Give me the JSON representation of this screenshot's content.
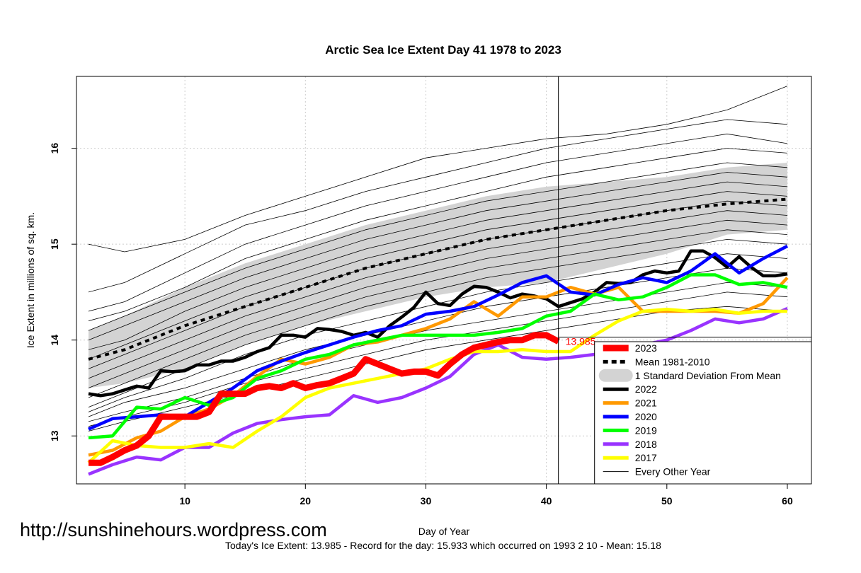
{
  "watermark": "http://sunshinehours.wordpress.com",
  "footer": "Today's Ice Extent: 13.985  - Record for the day: 15.933 which occurred on 1993 2 10  - Mean: 15.18",
  "chart_data": {
    "type": "line",
    "title": "Arctic Sea Ice Extent Day 41 1978 to 2023",
    "xlabel": "Day of Year",
    "ylabel": "Ice Extent in millions of sq. km.",
    "xlim": [
      1,
      62
    ],
    "ylim": [
      12.5,
      16.75
    ],
    "xticks": [
      10,
      20,
      30,
      40,
      50,
      60
    ],
    "yticks": [
      13,
      14,
      15,
      16
    ],
    "grid": true,
    "legend_position": "bottom-right",
    "reference_lines": {
      "vertical_x": 41,
      "horizontal_y": 14.03,
      "legend_box_left_x": 44
    },
    "annotation": {
      "x": 41,
      "y": 13.985,
      "text": "13.985",
      "color": "#ff0000"
    },
    "std_band": {
      "name": "1 Standard Deviation From Mean",
      "color": "#d3d3d3",
      "x": [
        2,
        5,
        10,
        15,
        20,
        25,
        30,
        35,
        40,
        45,
        50,
        55,
        60
      ],
      "upper": [
        14.1,
        14.25,
        14.55,
        14.8,
        15.0,
        15.2,
        15.35,
        15.5,
        15.6,
        15.65,
        15.7,
        15.8,
        15.85
      ],
      "lower": [
        13.5,
        13.55,
        13.7,
        13.95,
        14.15,
        14.3,
        14.45,
        14.55,
        14.6,
        14.75,
        14.9,
        15.1,
        15.15
      ]
    },
    "background_years": {
      "name": "Every Other Year",
      "color": "#000000",
      "x": [
        2,
        5,
        10,
        15,
        20,
        25,
        30,
        35,
        40,
        45,
        50,
        55,
        60
      ],
      "lines": [
        [
          15.0,
          14.92,
          15.05,
          15.3,
          15.5,
          15.7,
          15.9,
          16.0,
          16.1,
          16.15,
          16.25,
          16.4,
          16.65
        ],
        [
          14.5,
          14.6,
          14.9,
          15.2,
          15.35,
          15.55,
          15.7,
          15.85,
          16.0,
          16.1,
          16.2,
          16.3,
          16.25
        ],
        [
          14.3,
          14.4,
          14.7,
          15.0,
          15.2,
          15.4,
          15.55,
          15.7,
          15.85,
          15.95,
          16.05,
          16.15,
          16.05
        ],
        [
          14.2,
          14.3,
          14.55,
          14.85,
          15.05,
          15.25,
          15.4,
          15.55,
          15.7,
          15.8,
          15.9,
          16.0,
          15.95
        ],
        [
          14.1,
          14.25,
          14.5,
          14.75,
          14.95,
          15.15,
          15.3,
          15.45,
          15.55,
          15.65,
          15.75,
          15.85,
          15.8
        ],
        [
          14.0,
          14.15,
          14.4,
          14.65,
          14.85,
          15.05,
          15.2,
          15.35,
          15.45,
          15.55,
          15.65,
          15.75,
          15.7
        ],
        [
          13.9,
          14.0,
          14.3,
          14.55,
          14.75,
          14.95,
          15.1,
          15.25,
          15.35,
          15.45,
          15.55,
          15.65,
          15.6
        ],
        [
          13.8,
          13.95,
          14.2,
          14.45,
          14.65,
          14.85,
          15.0,
          15.15,
          15.25,
          15.35,
          15.45,
          15.55,
          15.5
        ],
        [
          13.7,
          13.85,
          14.1,
          14.35,
          14.55,
          14.75,
          14.9,
          15.05,
          15.15,
          15.25,
          15.35,
          15.45,
          15.4
        ],
        [
          13.6,
          13.75,
          14.0,
          14.25,
          14.45,
          14.65,
          14.8,
          14.95,
          15.05,
          15.15,
          15.25,
          15.35,
          15.3
        ],
        [
          13.5,
          13.65,
          13.9,
          14.15,
          14.35,
          14.55,
          14.7,
          14.85,
          14.95,
          15.05,
          15.15,
          15.25,
          15.2
        ],
        [
          13.4,
          13.55,
          13.8,
          14.05,
          14.25,
          14.45,
          14.6,
          14.75,
          14.85,
          14.95,
          15.05,
          15.15,
          15.1
        ],
        [
          13.3,
          13.45,
          13.7,
          13.95,
          14.15,
          14.35,
          14.5,
          14.65,
          14.75,
          14.85,
          14.95,
          15.05,
          15.0
        ],
        [
          13.25,
          13.4,
          13.6,
          13.85,
          14.05,
          14.2,
          14.35,
          14.5,
          14.6,
          14.7,
          14.8,
          14.9,
          14.85
        ],
        [
          13.2,
          13.35,
          13.5,
          13.7,
          13.9,
          14.05,
          14.2,
          14.35,
          14.45,
          14.55,
          14.65,
          14.75,
          14.7
        ],
        [
          13.15,
          13.25,
          13.4,
          13.6,
          13.8,
          13.95,
          14.1,
          14.2,
          14.3,
          14.4,
          14.5,
          14.6,
          14.55
        ],
        [
          13.1,
          13.2,
          13.35,
          13.55,
          13.7,
          13.85,
          14.0,
          14.1,
          14.2,
          14.3,
          14.4,
          14.5,
          14.45
        ],
        [
          13.05,
          13.15,
          13.3,
          13.45,
          13.6,
          13.75,
          13.9,
          14.0,
          14.1,
          14.2,
          14.3,
          14.35,
          14.3
        ]
      ]
    },
    "mean": {
      "name": "Mean 1981-2010",
      "color": "#000000",
      "x": [
        2,
        5,
        10,
        15,
        20,
        25,
        30,
        35,
        40,
        45,
        50,
        55,
        60
      ],
      "values": [
        13.8,
        13.9,
        14.15,
        14.35,
        14.55,
        14.75,
        14.9,
        15.05,
        15.15,
        15.25,
        15.35,
        15.42,
        15.47
      ]
    },
    "series": [
      {
        "name": "2022",
        "color": "#000000",
        "x": [
          2,
          3,
          4,
          5,
          6,
          7,
          8,
          9,
          10,
          11,
          12,
          13,
          14,
          15,
          16,
          17,
          18,
          19,
          20,
          21,
          22,
          23,
          24,
          25,
          26,
          27,
          28,
          29,
          30,
          31,
          32,
          33,
          34,
          35,
          36,
          37,
          38,
          39,
          40,
          41,
          42,
          43,
          44,
          45,
          46,
          47,
          48,
          49,
          50,
          51,
          52,
          53,
          54,
          55,
          56,
          57,
          58,
          59,
          60
        ],
        "values": [
          13.44,
          13.42,
          13.44,
          13.48,
          13.52,
          13.5,
          13.68,
          13.67,
          13.68,
          13.74,
          13.74,
          13.78,
          13.78,
          13.82,
          13.88,
          13.92,
          14.05,
          14.05,
          14.03,
          14.12,
          14.11,
          14.09,
          14.05,
          14.08,
          14.03,
          14.15,
          14.24,
          14.34,
          14.5,
          14.38,
          14.36,
          14.48,
          14.56,
          14.55,
          14.5,
          14.44,
          14.48,
          14.46,
          14.43,
          14.35,
          14.39,
          14.43,
          14.5,
          14.6,
          14.59,
          14.6,
          14.68,
          14.72,
          14.7,
          14.72,
          14.93,
          14.93,
          14.86,
          14.76,
          14.87,
          14.76,
          14.67,
          14.67,
          14.69
        ]
      },
      {
        "name": "2021",
        "color": "#ff9900",
        "x": [
          2,
          4,
          6,
          8,
          10,
          12,
          14,
          16,
          18,
          20,
          22,
          24,
          26,
          28,
          30,
          32,
          34,
          36,
          38,
          40,
          42,
          44,
          46,
          48,
          50,
          52,
          54,
          56,
          58,
          60
        ],
        "values": [
          12.8,
          12.85,
          12.98,
          13.05,
          13.2,
          13.28,
          13.42,
          13.62,
          13.8,
          13.75,
          13.82,
          13.95,
          13.98,
          14.05,
          14.12,
          14.22,
          14.4,
          14.25,
          14.45,
          14.45,
          14.55,
          14.48,
          14.55,
          14.3,
          14.3,
          14.3,
          14.3,
          14.28,
          14.38,
          14.65
        ]
      },
      {
        "name": "2020",
        "color": "#0000ff",
        "x": [
          2,
          4,
          6,
          8,
          10,
          12,
          14,
          16,
          18,
          20,
          22,
          24,
          26,
          28,
          30,
          32,
          34,
          36,
          38,
          40,
          42,
          44,
          46,
          48,
          50,
          52,
          54,
          56,
          58,
          60
        ],
        "values": [
          13.07,
          13.18,
          13.2,
          13.22,
          13.2,
          13.35,
          13.5,
          13.68,
          13.78,
          13.87,
          13.95,
          14.03,
          14.1,
          14.15,
          14.27,
          14.3,
          14.35,
          14.47,
          14.6,
          14.67,
          14.5,
          14.47,
          14.58,
          14.65,
          14.6,
          14.72,
          14.9,
          14.7,
          14.85,
          14.98
        ]
      },
      {
        "name": "2019",
        "color": "#00ff00",
        "x": [
          2,
          4,
          6,
          8,
          10,
          12,
          14,
          16,
          18,
          20,
          22,
          24,
          26,
          28,
          30,
          32,
          34,
          36,
          38,
          40,
          42,
          44,
          46,
          48,
          50,
          52,
          54,
          56,
          58,
          60
        ],
        "values": [
          12.98,
          13.0,
          13.3,
          13.28,
          13.4,
          13.32,
          13.4,
          13.6,
          13.68,
          13.8,
          13.85,
          13.95,
          14.0,
          14.05,
          14.05,
          14.05,
          14.05,
          14.08,
          14.12,
          14.25,
          14.3,
          14.48,
          14.42,
          14.45,
          14.55,
          14.68,
          14.68,
          14.58,
          14.6,
          14.55
        ]
      },
      {
        "name": "2018",
        "color": "#9933ff",
        "x": [
          2,
          4,
          6,
          8,
          10,
          12,
          14,
          16,
          18,
          20,
          22,
          24,
          26,
          28,
          30,
          32,
          34,
          36,
          38,
          40,
          42,
          44,
          46,
          48,
          50,
          52,
          54,
          56,
          58,
          60
        ],
        "values": [
          12.6,
          12.7,
          12.78,
          12.75,
          12.88,
          12.88,
          13.03,
          13.13,
          13.17,
          13.2,
          13.22,
          13.42,
          13.35,
          13.4,
          13.5,
          13.62,
          13.85,
          13.95,
          13.82,
          13.8,
          13.82,
          13.85,
          13.9,
          13.95,
          14.0,
          14.1,
          14.22,
          14.18,
          14.22,
          14.33
        ]
      },
      {
        "name": "2017",
        "color": "#ffff00",
        "x": [
          2,
          4,
          6,
          8,
          10,
          12,
          14,
          16,
          18,
          20,
          22,
          24,
          26,
          28,
          30,
          32,
          34,
          36,
          38,
          40,
          42,
          44,
          46,
          48,
          50,
          52,
          54,
          56,
          58,
          60
        ],
        "values": [
          12.72,
          12.95,
          12.9,
          12.88,
          12.88,
          12.92,
          12.88,
          13.05,
          13.2,
          13.4,
          13.5,
          13.55,
          13.6,
          13.65,
          13.7,
          13.8,
          13.88,
          13.88,
          13.9,
          13.88,
          13.88,
          14.05,
          14.2,
          14.3,
          14.32,
          14.3,
          14.32,
          14.28,
          14.3,
          14.3
        ]
      },
      {
        "name": "2023",
        "color": "#ff0000",
        "x": [
          2,
          3,
          4,
          5,
          6,
          7,
          8,
          9,
          10,
          11,
          12,
          13,
          14,
          15,
          16,
          17,
          18,
          19,
          20,
          21,
          22,
          23,
          24,
          25,
          26,
          27,
          28,
          29,
          30,
          31,
          32,
          33,
          34,
          35,
          36,
          37,
          38,
          39,
          40,
          41
        ],
        "values": [
          12.72,
          12.72,
          12.78,
          12.85,
          12.9,
          13.0,
          13.2,
          13.2,
          13.2,
          13.2,
          13.25,
          13.44,
          13.44,
          13.44,
          13.5,
          13.52,
          13.5,
          13.55,
          13.5,
          13.53,
          13.55,
          13.6,
          13.65,
          13.8,
          13.75,
          13.7,
          13.65,
          13.67,
          13.67,
          13.63,
          13.75,
          13.85,
          13.92,
          13.95,
          13.98,
          14.0,
          14.0,
          14.05,
          14.05,
          13.985
        ]
      }
    ],
    "legend": [
      {
        "label": "2023",
        "style": "thick",
        "color": "#ff0000"
      },
      {
        "label": "Mean 1981-2010",
        "style": "dashed",
        "color": "#000000"
      },
      {
        "label": "1 Standard Deviation From Mean",
        "style": "band",
        "color": "#d3d3d3"
      },
      {
        "label": "2022",
        "style": "thick",
        "color": "#000000"
      },
      {
        "label": "2021",
        "style": "thick",
        "color": "#ff9900"
      },
      {
        "label": "2020",
        "style": "thick",
        "color": "#0000ff"
      },
      {
        "label": "2019",
        "style": "thick",
        "color": "#00ff00"
      },
      {
        "label": "2018",
        "style": "thick",
        "color": "#9933ff"
      },
      {
        "label": "2017",
        "style": "thick",
        "color": "#ffff00"
      },
      {
        "label": "Every Other Year",
        "style": "thin",
        "color": "#000000"
      }
    ]
  }
}
